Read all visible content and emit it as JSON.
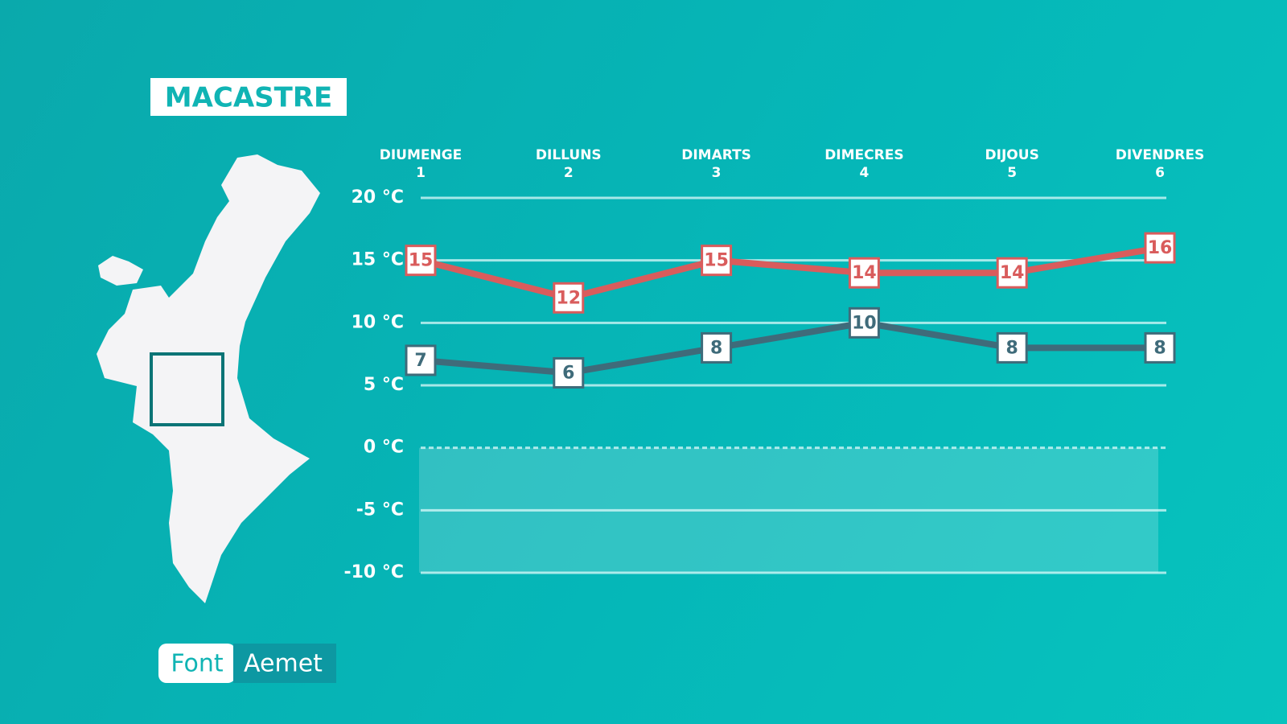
{
  "chart_data": {
    "type": "line",
    "title": "MACASTRE",
    "categories": [
      "DIUMENGE\n1",
      "DILLUNS\n2",
      "DIMARTS\n3",
      "DIMECRES\n4",
      "DIJOUS\n5",
      "DIVENDRES\n6"
    ],
    "series": [
      {
        "color": "#d95c5c",
        "values": [
          15,
          12,
          15,
          14,
          14,
          16
        ]
      },
      {
        "color": "#3f6b7a",
        "values": [
          7,
          6,
          8,
          10,
          8,
          8
        ]
      }
    ],
    "ylim": [
      -10,
      20
    ],
    "yticks": [
      {
        "value": -10,
        "label": "-10 °C"
      },
      {
        "value": -5,
        "label": "-5 °C"
      },
      {
        "value": 0,
        "label": "0 °C"
      },
      {
        "value": 5,
        "label": "5 °C"
      },
      {
        "value": 10,
        "label": "10 °C"
      },
      {
        "value": 15,
        "label": "15 °C"
      },
      {
        "value": 20,
        "label": "20 °C"
      }
    ],
    "grid": true,
    "source": {
      "label": "Font",
      "name": "Aemet"
    }
  }
}
